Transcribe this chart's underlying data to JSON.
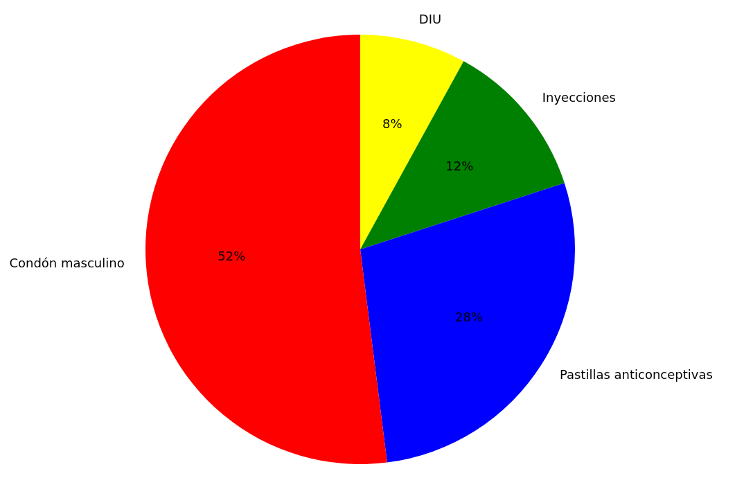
{
  "chart_data": {
    "type": "pie",
    "categories": [
      "DIU",
      "Inyecciones",
      "Pastillas anticonceptivas",
      "Condón masculino"
    ],
    "values": [
      8,
      12,
      28,
      52
    ],
    "colors": [
      "#ffff00",
      "#008000",
      "#0000ff",
      "#ff0000"
    ],
    "value_labels": [
      "8%",
      "12%",
      "28%",
      "52%"
    ]
  }
}
